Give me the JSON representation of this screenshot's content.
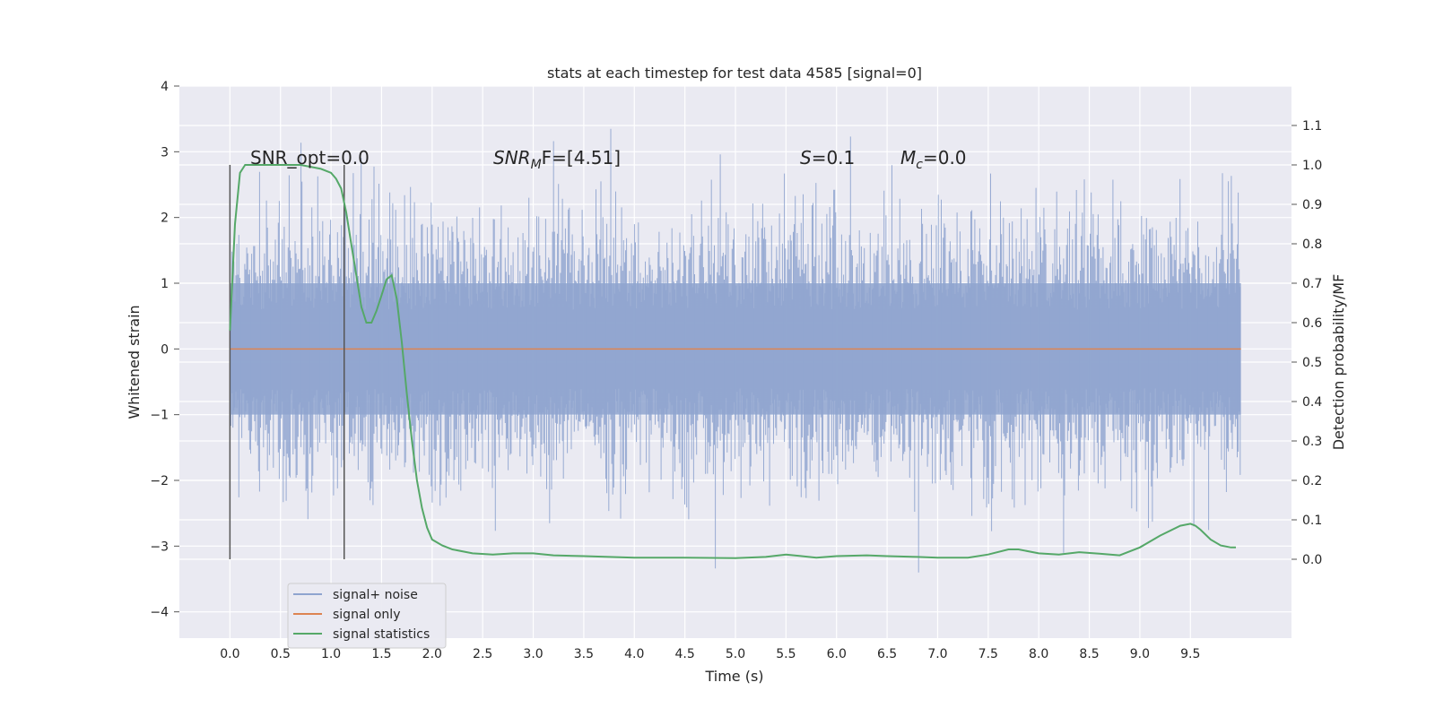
{
  "chart_data": {
    "type": "line",
    "title": "stats at each timestep for test data 4585 [signal=0]",
    "xlabel": "Time (s)",
    "ylabel": "Whitened strain",
    "y2label": "Detection probability/MF",
    "xlim": [
      -0.5,
      10.5
    ],
    "ylim": [
      -4.4,
      4.0
    ],
    "y2lim": [
      -0.2,
      1.2
    ],
    "x_ticks": [
      "0.0",
      "0.5",
      "1.0",
      "1.5",
      "2.0",
      "2.5",
      "3.0",
      "3.5",
      "4.0",
      "4.5",
      "5.0",
      "5.5",
      "6.0",
      "6.5",
      "7.0",
      "7.5",
      "8.0",
      "8.5",
      "9.0",
      "9.5"
    ],
    "y_ticks": [
      "4",
      "3",
      "2",
      "1",
      "0",
      "−1",
      "−2",
      "−3",
      "−4"
    ],
    "y2_ticks": [
      "1.1",
      "1.0",
      "0.9",
      "0.8",
      "0.7",
      "0.6",
      "0.5",
      "0.4",
      "0.3",
      "0.2",
      "0.1",
      "0.0"
    ],
    "grid": true,
    "legend_position": "lower-left",
    "vlines": [
      0.0,
      1.13
    ],
    "annotations": {
      "snr_opt": "SNR_opt=0.0",
      "snr_mf_base": "SNR",
      "snr_mf_sub": "M",
      "snr_mf_rest": "F=[4.51]",
      "s": "=0.1",
      "s_label": "S",
      "mc_label": "M",
      "mc_sub": "c",
      "mc": "=0.0"
    },
    "colors": {
      "noise": "#8fa4cf",
      "signal": "#dd8452",
      "stats": "#55a868",
      "background": "#eaeaf2",
      "grid": "#ffffff",
      "vline": "#555555"
    },
    "series": [
      {
        "name": "signal+ noise",
        "style": "noisy-band",
        "x_range": [
          0.0,
          10.0
        ],
        "amplitude_core": 1.0,
        "amplitude_peak": 3.6
      },
      {
        "name": "signal only",
        "x": [
          0.0,
          10.0
        ],
        "y": [
          0.0,
          0.0
        ]
      },
      {
        "name": "signal statistics",
        "axis": "right",
        "x": [
          0.0,
          0.05,
          0.1,
          0.15,
          0.2,
          0.3,
          0.5,
          0.7,
          0.9,
          1.0,
          1.05,
          1.1,
          1.15,
          1.2,
          1.25,
          1.3,
          1.35,
          1.4,
          1.45,
          1.5,
          1.55,
          1.6,
          1.65,
          1.7,
          1.75,
          1.8,
          1.85,
          1.9,
          1.95,
          2.0,
          2.1,
          2.2,
          2.4,
          2.6,
          2.8,
          3.0,
          3.2,
          3.5,
          4.0,
          4.5,
          5.0,
          5.3,
          5.5,
          5.8,
          6.0,
          6.3,
          6.5,
          6.8,
          7.0,
          7.3,
          7.5,
          7.7,
          7.8,
          8.0,
          8.2,
          8.4,
          8.6,
          8.8,
          9.0,
          9.2,
          9.4,
          9.5,
          9.55,
          9.6,
          9.7,
          9.8,
          9.9,
          9.95
        ],
        "y": [
          0.58,
          0.85,
          0.98,
          1.0,
          1.0,
          1.0,
          1.0,
          1.0,
          0.99,
          0.98,
          0.965,
          0.94,
          0.88,
          0.8,
          0.72,
          0.64,
          0.6,
          0.6,
          0.63,
          0.67,
          0.71,
          0.72,
          0.66,
          0.55,
          0.42,
          0.3,
          0.2,
          0.13,
          0.08,
          0.05,
          0.035,
          0.025,
          0.015,
          0.012,
          0.015,
          0.015,
          0.01,
          0.008,
          0.004,
          0.004,
          0.003,
          0.006,
          0.012,
          0.004,
          0.008,
          0.01,
          0.008,
          0.006,
          0.004,
          0.004,
          0.012,
          0.025,
          0.025,
          0.015,
          0.012,
          0.018,
          0.014,
          0.01,
          0.03,
          0.06,
          0.085,
          0.09,
          0.085,
          0.075,
          0.05,
          0.035,
          0.03,
          0.03
        ]
      }
    ]
  }
}
